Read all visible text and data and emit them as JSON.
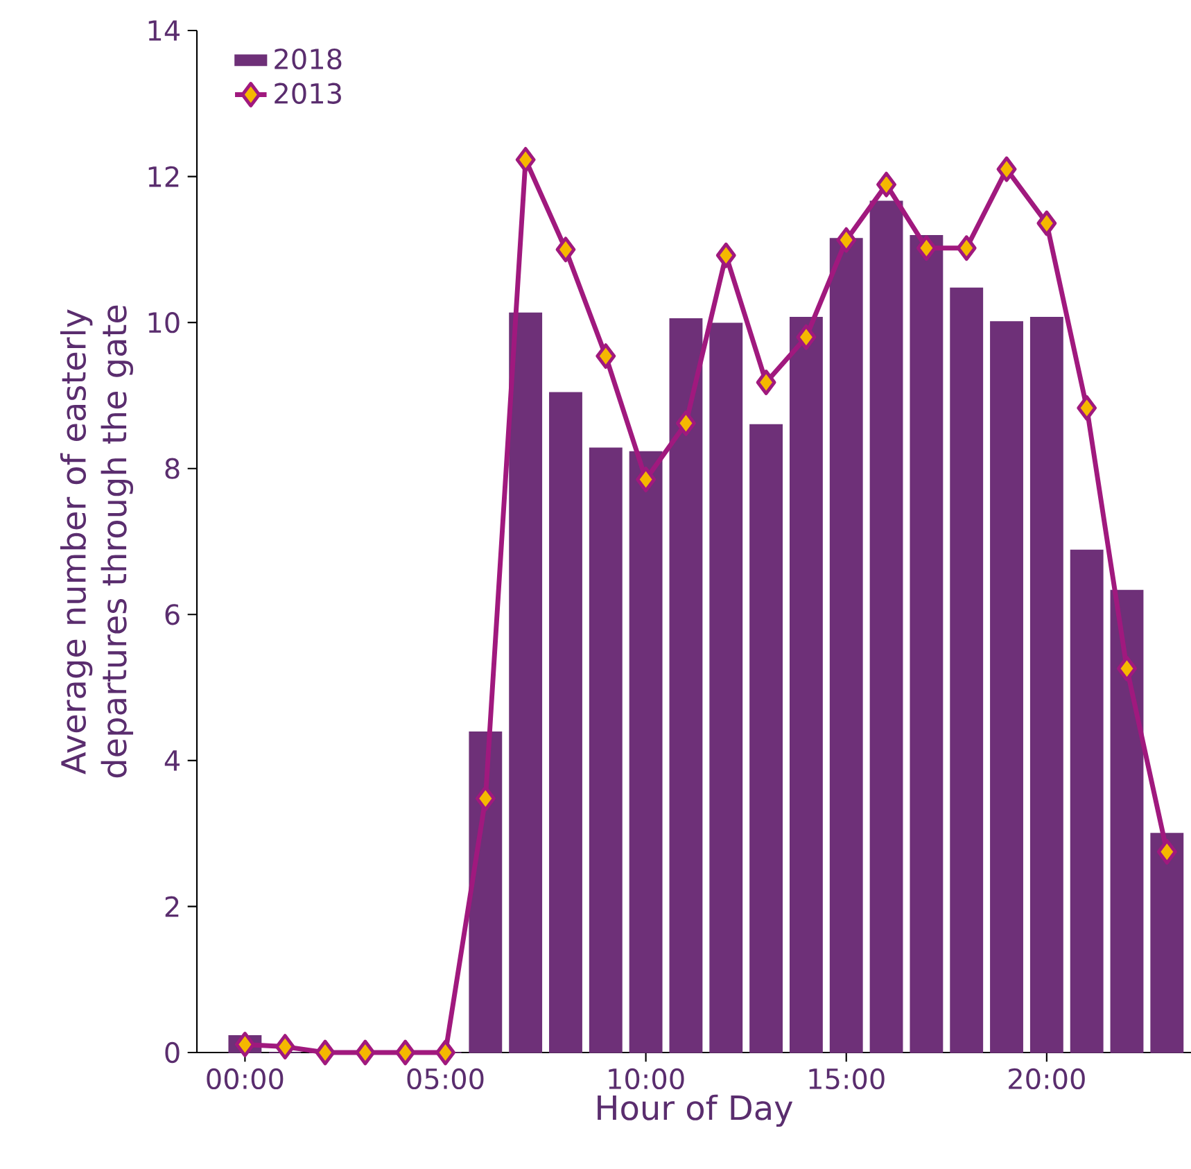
{
  "chart_data": {
    "type": "bar",
    "xlabel": "Hour of Day",
    "ylabel": "Average number of easterly departures through the gate",
    "x": [
      0,
      1,
      2,
      3,
      4,
      5,
      6,
      7,
      8,
      9,
      10,
      11,
      12,
      13,
      14,
      15,
      16,
      17,
      18,
      19,
      20,
      21,
      22,
      23
    ],
    "series": [
      {
        "name": "2018",
        "color": "#6e3078",
        "values": [
          0.23,
          0,
          0,
          0,
          0,
          0,
          4.39,
          10.13,
          9.04,
          8.28,
          8.23,
          10.05,
          9.99,
          8.6,
          10.07,
          11.15,
          11.66,
          11.19,
          10.47,
          10.01,
          10.07,
          6.88,
          6.33,
          3.0
        ]
      },
      {
        "name": "2013",
        "type": "line",
        "color": "#a0197e",
        "marker": "diamond",
        "line_style": "solid",
        "values": [
          0.11,
          0.08,
          0,
          0,
          0,
          0,
          3.48,
          12.23,
          11.0,
          9.54,
          7.85,
          8.62,
          10.92,
          9.18,
          9.8,
          11.13,
          11.89,
          11.02,
          11.02,
          12.1,
          11.36,
          8.83,
          5.26,
          2.75
        ]
      }
    ],
    "xlim": [
      -1.2,
      23.6
    ],
    "ylim": [
      0,
      14
    ],
    "xticks": [
      {
        "value": 0,
        "label": "00:00"
      },
      {
        "value": 5,
        "label": "05:00"
      },
      {
        "value": 10,
        "label": "10:00"
      },
      {
        "value": 15,
        "label": "15:00"
      },
      {
        "value": 20,
        "label": "20:00"
      }
    ],
    "yticks": [
      0,
      2,
      4,
      6,
      8,
      10,
      12,
      14
    ],
    "legend": "top left"
  }
}
